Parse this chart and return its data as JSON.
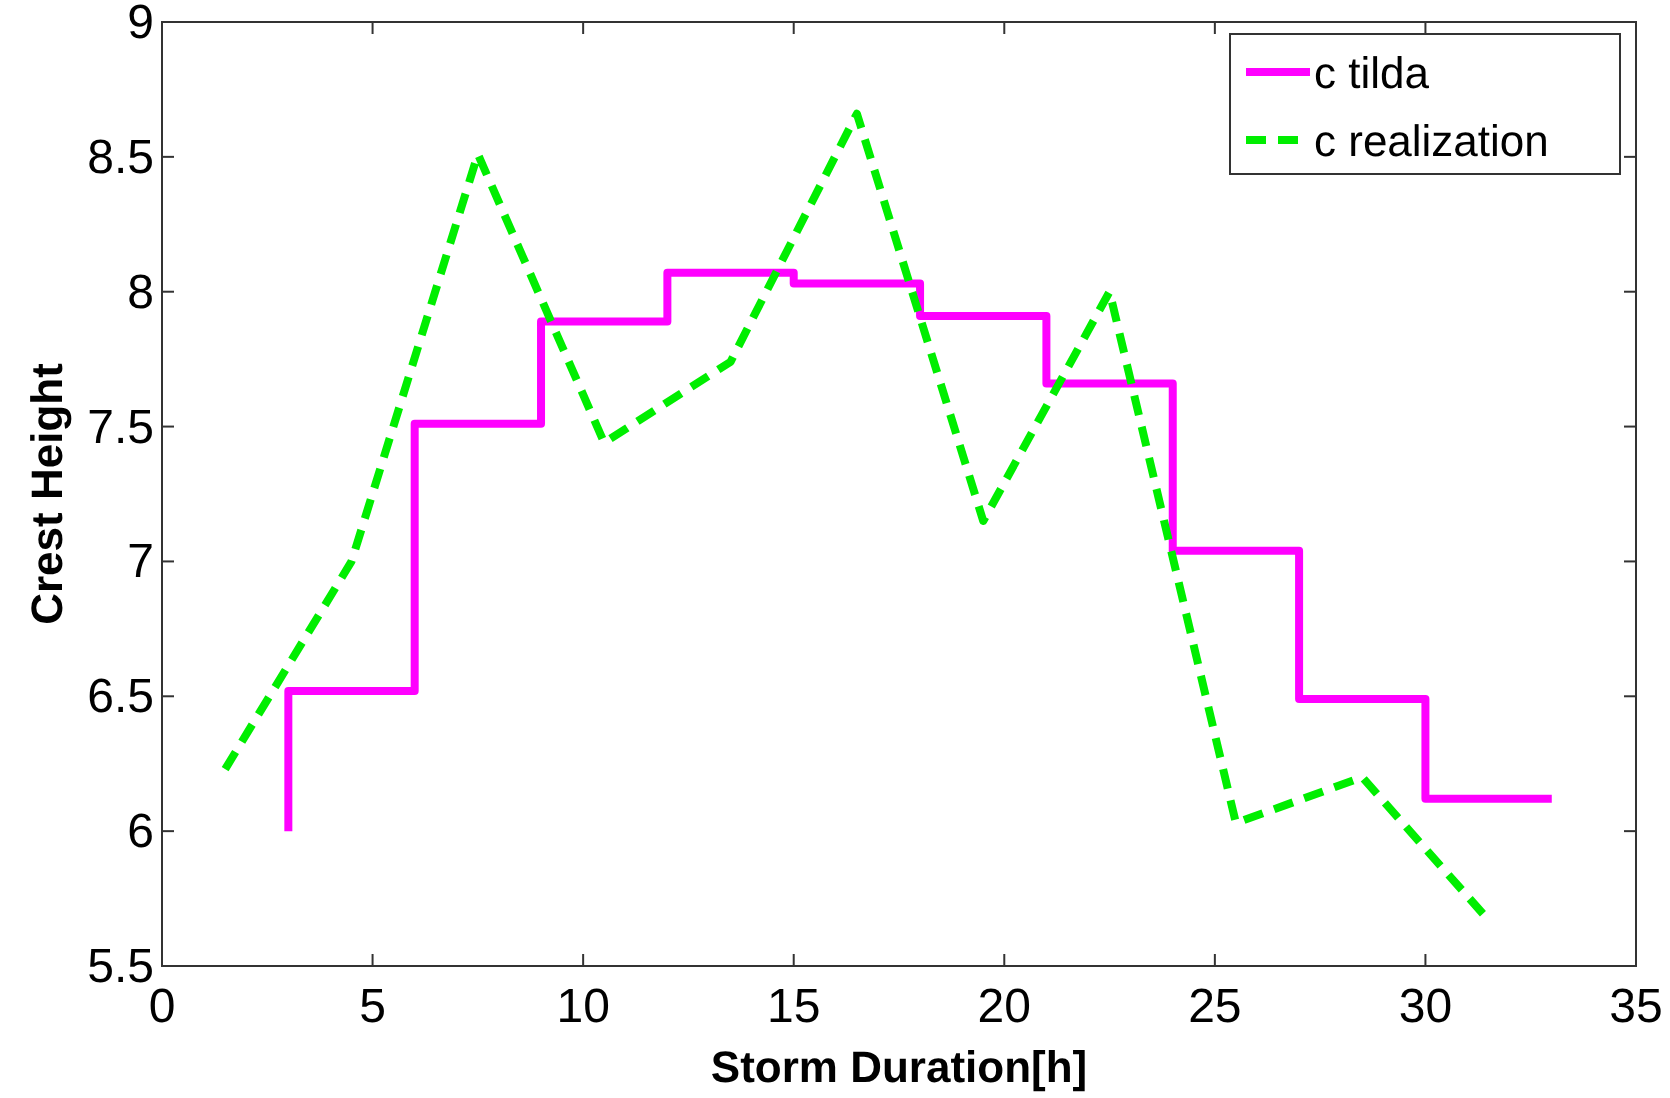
{
  "chart_data": {
    "type": "line",
    "xlabel": "Storm Duration[h]",
    "ylabel": "Crest Height",
    "xlim": [
      0,
      35
    ],
    "xticks": [
      0,
      5,
      10,
      15,
      20,
      25,
      30,
      35
    ],
    "ylim": [
      5.5,
      9
    ],
    "yticks": [
      5.5,
      6,
      6.5,
      7,
      7.5,
      8,
      8.5,
      9
    ],
    "grid": false,
    "legend": "top right",
    "marker": "none",
    "series": [
      {
        "name": "c tilda",
        "type": "step",
        "color": "#ff00ff",
        "line_style": "solid",
        "x": [
          3,
          3,
          6,
          9,
          12,
          15,
          18,
          21,
          24,
          27,
          30,
          33
        ],
        "values": [
          6,
          6.52,
          7.51,
          7.89,
          8.07,
          8.03,
          7.91,
          7.66,
          7.04,
          6.49,
          6.12,
          6.12
        ]
      },
      {
        "name": "c realization",
        "type": "line",
        "color": "#00ee00",
        "line_style": "dashed",
        "x": [
          1.5,
          4.5,
          7.5,
          10.5,
          13.5,
          16.5,
          19.5,
          22.5,
          25.5,
          28.5,
          31.5
        ],
        "values": [
          6.23,
          7.0,
          8.51,
          7.44,
          7.74,
          8.66,
          7.15,
          8.0,
          6.03,
          6.2,
          5.67
        ]
      }
    ]
  }
}
